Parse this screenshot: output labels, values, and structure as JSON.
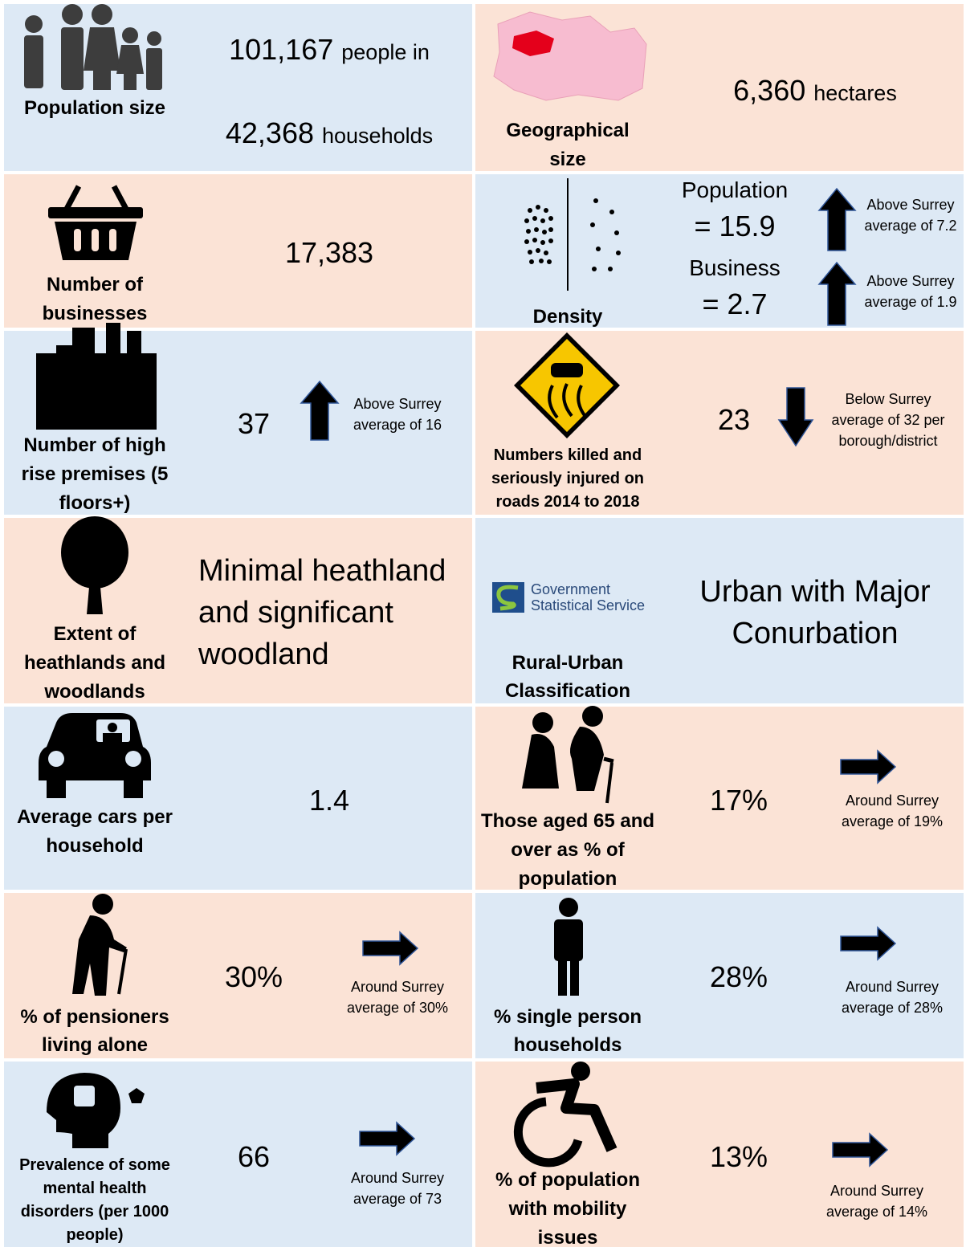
{
  "cells": [
    {
      "label": "Population size",
      "lines": [
        {
          "value": "101,167",
          "unit": "people in"
        },
        {
          "value": "42,368",
          "unit": "households"
        }
      ]
    },
    {
      "label": "Geographical size",
      "lines": [
        {
          "value": "6,360",
          "unit": "hectares"
        }
      ]
    },
    {
      "label": "Number of businesses",
      "value": "17,383"
    },
    {
      "label": "Density",
      "items": [
        {
          "name": "Population",
          "value": "= 15.9",
          "note": "Above Surrey average of 7.2"
        },
        {
          "name": "Business",
          "value": "= 2.7",
          "note": "Above Surrey average of 1.9"
        }
      ]
    },
    {
      "label": "Number of high rise premises (5 floors+)",
      "value": "37",
      "note": "Above Surrey average of 16"
    },
    {
      "label": "Numbers killed and seriously injured on roads 2014 to 2018",
      "value": "23",
      "note": "Below  Surrey average of 32 per borough/district"
    },
    {
      "label": "Extent of heathlands and woodlands",
      "value": "Minimal heathland and significant woodland"
    },
    {
      "label": "Rural-Urban Classification",
      "logo": [
        "Government",
        "Statistical Service"
      ],
      "value": "Urban with Major Conurbation"
    },
    {
      "label": "Average cars per household",
      "value": "1.4"
    },
    {
      "label": "Those aged 65 and over as % of population",
      "value": "17%",
      "note": "Around  Surrey average of 19%"
    },
    {
      "label": "% of pensioners living alone",
      "value": "30%",
      "note": "Around Surrey average of 30%"
    },
    {
      "label": "% single person households",
      "value": "28%",
      "note": "Around Surrey average of 28%"
    },
    {
      "label": "Prevalence of some mental health disorders (per 1000 people)",
      "value": "66",
      "note": "Around Surrey average of 73"
    },
    {
      "label": "% of population with mobility issues",
      "value": "13%",
      "note": "Around Surrey average of 14%"
    }
  ]
}
